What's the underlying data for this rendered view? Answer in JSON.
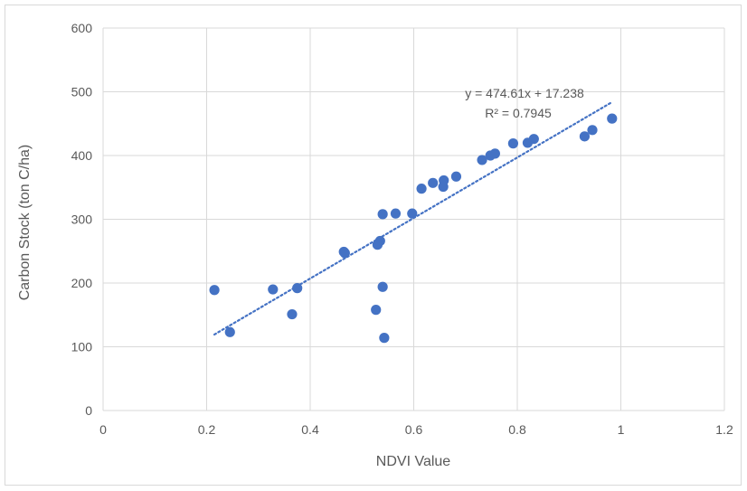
{
  "chart_data": {
    "type": "scatter",
    "title": "",
    "xlabel": "NDVI Value",
    "ylabel": "Carbon Stock (ton C/ha)",
    "xlim": [
      0,
      1.2
    ],
    "ylim": [
      0,
      600
    ],
    "x_ticks": [
      "0",
      "0.2",
      "0.4",
      "0.6",
      "0.8",
      "1",
      "1.2"
    ],
    "y_ticks": [
      "0",
      "100",
      "200",
      "300",
      "400",
      "500",
      "600"
    ],
    "grid": true,
    "legend": "none",
    "series": [
      {
        "color": "#4472c4",
        "points": [
          [
            0.215,
            189
          ],
          [
            0.245,
            123
          ],
          [
            0.328,
            190
          ],
          [
            0.365,
            151
          ],
          [
            0.375,
            192
          ],
          [
            0.465,
            249
          ],
          [
            0.467,
            247
          ],
          [
            0.527,
            158
          ],
          [
            0.53,
            260
          ],
          [
            0.535,
            266
          ],
          [
            0.54,
            308
          ],
          [
            0.54,
            194
          ],
          [
            0.543,
            114
          ],
          [
            0.565,
            309
          ],
          [
            0.597,
            309
          ],
          [
            0.615,
            348
          ],
          [
            0.637,
            357
          ],
          [
            0.657,
            351
          ],
          [
            0.658,
            361
          ],
          [
            0.682,
            367
          ],
          [
            0.732,
            393
          ],
          [
            0.748,
            400
          ],
          [
            0.757,
            403
          ],
          [
            0.792,
            419
          ],
          [
            0.82,
            420
          ],
          [
            0.832,
            426
          ],
          [
            0.93,
            430
          ],
          [
            0.945,
            440
          ],
          [
            0.983,
            458
          ]
        ]
      }
    ],
    "trendline": {
      "type": "linear",
      "slope": 474.61,
      "intercept": 17.238,
      "x_range": [
        0.215,
        0.983
      ],
      "color": "#4472c4",
      "equation_label": "y = 474.61x + 17.238",
      "r2_label": "R² = 0.7945"
    }
  }
}
